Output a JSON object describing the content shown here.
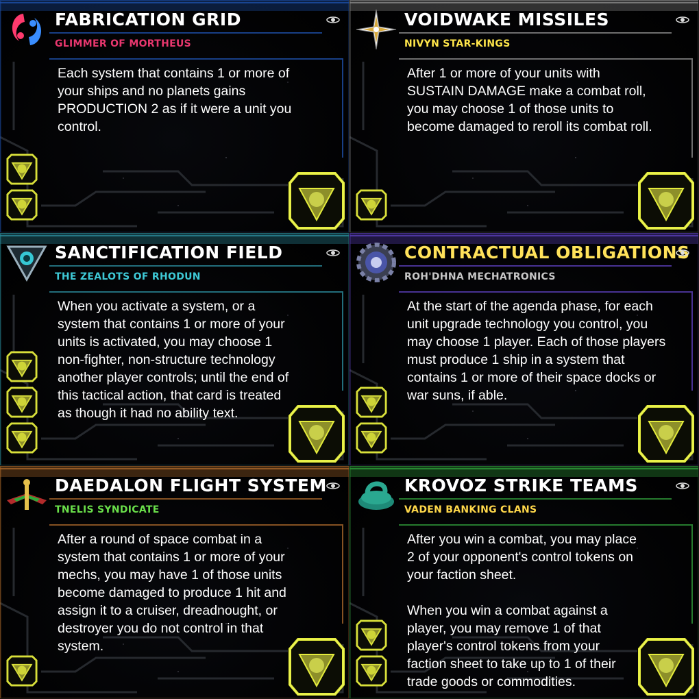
{
  "cards": [
    {
      "title": "FABRICATION GRID",
      "faction": "GLIMMER OF MORTHEUS",
      "faction_color": "#e8376e",
      "frame_color": "#1e4fa8",
      "icon": "mortheus-faction-icon",
      "text": "Each system that contains 1 or more of\nyour ships and no planets gains\nPRODUCTION 2 as if it were a unit you\ncontrol.",
      "prerequisites": 2
    },
    {
      "title": "VOIDWAKE MISSILES",
      "faction": "NIVYN STAR-KINGS",
      "faction_color": "#ffe64a",
      "frame_color": "#8a8a8a",
      "icon": "star-compass-faction-icon",
      "text": "After 1 or more of your units with\nSUSTAIN DAMAGE make a combat roll,\nyou may choose 1 of those units to\nbecome damaged to reroll its combat roll.",
      "prerequisites": 1
    },
    {
      "title": "SANCTIFICATION FIELD",
      "faction": "THE ZEALOTS OF RHODUN",
      "faction_color": "#3ec9d6",
      "frame_color": "#2a8a9a",
      "icon": "rhodun-triangle-faction-icon",
      "text": "When you activate a system, or a\nsystem that contains 1 or more of your\nunits is activated, you may choose 1\nnon-fighter, non-structure technology\nanother player controls; until the end of\nthis tactical action, that card is treated\nas though it had no ability text.",
      "prerequisites": 3
    },
    {
      "title": "CONTRACTUAL OBLIGATIONS",
      "title_color": "#ffe25a",
      "faction": "ROH'DHNA MECHATRONICS",
      "faction_color": "#c7c7c7",
      "frame_color": "#5a3fb8",
      "icon": "gear-faction-icon",
      "text": "At the start of the agenda phase, for each\nunit upgrade technology you control, you\nmay choose 1 player. Each of those players\nmust produce 1 ship in a system that\ncontains 1 or more of their space docks or\nwar suns, if able.",
      "prerequisites": 2
    },
    {
      "title": "DAEDALON FLIGHT SYSTEM",
      "faction": "TNELIS SYNDICATE",
      "faction_color": "#6adf4a",
      "frame_color": "#a8672a",
      "icon": "tnelis-wings-faction-icon",
      "text": "After a round of space combat in a\nsystem that contains 1 or more of your\nmechs, you may have 1 of those units\nbecome damaged to produce 1 hit and\nassign it to a cruiser, dreadnought, or\ndestroyer you do not control in that\nsystem.",
      "prerequisites": 1
    },
    {
      "title": "KROVOZ STRIKE TEAMS",
      "faction": "VADEN BANKING CLANS",
      "faction_color": "#ffd84a",
      "frame_color": "#2f9a3a",
      "icon": "vaden-faction-icon",
      "text": "After you win a combat, you may place\n2 of your opponent's control tokens on\nyour faction sheet.\n\nWhen you win a combat against a\nplayer, you may remove 1 of that\nplayer's control tokens from your\nfaction sheet to take up to 1 of their\ntrade goods or commodities.",
      "prerequisites": 2
    }
  ],
  "colors": {
    "tech_yellow": "#d9e03a",
    "tech_fill": "#8d8f2a"
  }
}
